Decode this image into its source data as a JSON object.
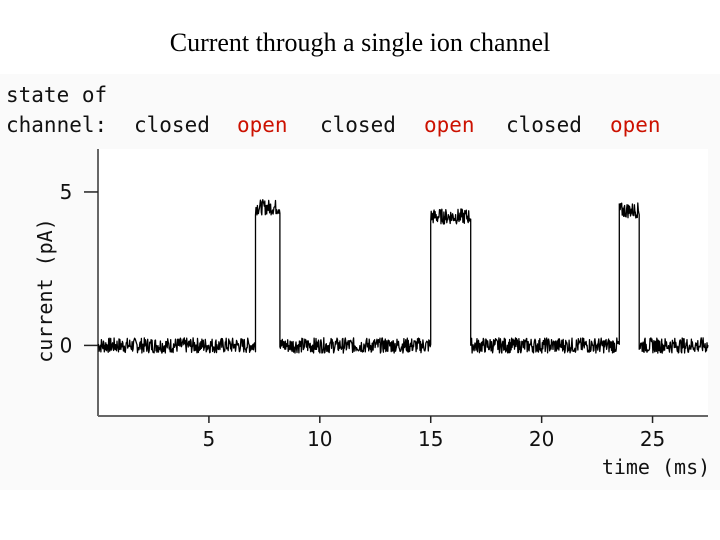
{
  "title": "Current through a single ion channel",
  "state_label_line1": "state of",
  "state_label_line2": "channel:",
  "colors": {
    "closed": "#111111",
    "open": "#cc1100",
    "trace": "#000000",
    "plot_bg": "#ffffff",
    "frame": "#666666"
  },
  "chart_data": {
    "type": "line",
    "xlabel": "time (ms)",
    "ylabel": "current (pA)",
    "xlim": [
      0,
      27.5
    ],
    "ylim": [
      -2.3,
      6.4
    ],
    "xticks": [
      5,
      10,
      15,
      20,
      25
    ],
    "yticks": [
      0,
      5
    ],
    "grid": false,
    "states": [
      {
        "label": "closed",
        "kind": "closed"
      },
      {
        "label": "open",
        "kind": "open"
      },
      {
        "label": "closed",
        "kind": "closed"
      },
      {
        "label": "open",
        "kind": "open"
      },
      {
        "label": "closed",
        "kind": "closed"
      },
      {
        "label": "open",
        "kind": "open"
      }
    ],
    "series": [
      {
        "segments": [
          {
            "start": 0.0,
            "end": 7.1,
            "current": 0.0
          },
          {
            "start": 7.1,
            "end": 8.2,
            "current": 4.5
          },
          {
            "start": 8.2,
            "end": 15.0,
            "current": 0.0
          },
          {
            "start": 15.0,
            "end": 16.8,
            "current": 4.2
          },
          {
            "start": 16.8,
            "end": 23.5,
            "current": 0.0
          },
          {
            "start": 23.5,
            "end": 24.4,
            "current": 4.4
          },
          {
            "start": 24.4,
            "end": 27.5,
            "current": 0.0
          }
        ],
        "noise_pA": 0.25
      }
    ]
  }
}
